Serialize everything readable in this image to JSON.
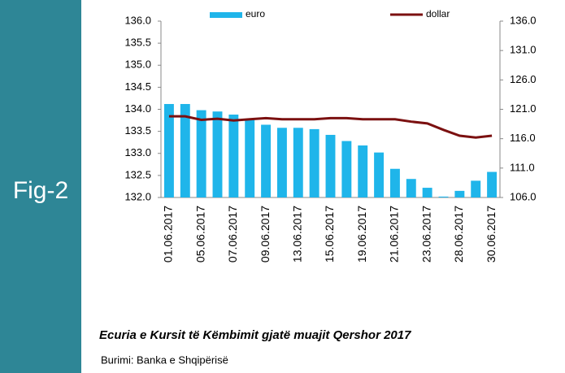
{
  "figure_label": "Fig-2",
  "caption": "Ecuria e Kursit të Këmbimit gjatë muajit Qershor 2017",
  "source": "Burimi: Banka e Shqipërisë",
  "chart_data": {
    "type": "bar-line",
    "categories": [
      "01.06.2017",
      null,
      "05.06.2017",
      null,
      "07.06.2017",
      null,
      "09.06.2017",
      null,
      "13.06.2017",
      null,
      "15.06.2017",
      null,
      "19.06.2017",
      null,
      "21.06.2017",
      null,
      "23.06.2017",
      null,
      "28.06.2017",
      null,
      "30.06.2017"
    ],
    "series": [
      {
        "name": "euro",
        "color": "#1fb5ea",
        "values": [
          134.12,
          134.12,
          133.98,
          133.95,
          133.88,
          133.78,
          133.65,
          133.58,
          133.58,
          133.55,
          133.42,
          133.28,
          133.18,
          133.02,
          132.65,
          132.42,
          132.22,
          132.02,
          132.15,
          132.38,
          132.58
        ]
      },
      {
        "name": "dollar",
        "color": "#7b1010",
        "axis": "y2",
        "values": [
          119.8,
          119.8,
          119.2,
          119.4,
          119.1,
          119.3,
          119.5,
          119.3,
          119.3,
          119.3,
          119.5,
          119.5,
          119.3,
          119.3,
          119.3,
          118.9,
          118.6,
          117.5,
          116.5,
          116.2,
          116.5
        ]
      }
    ],
    "ylim": [
      132.0,
      136.0
    ],
    "yticks": [
      {
        "value": 132,
        "label": "132.0"
      },
      {
        "value": 132.5,
        "label": "132.5"
      },
      {
        "value": 133,
        "label": "133.0"
      },
      {
        "value": 133.5,
        "label": "133.5"
      },
      {
        "value": 134,
        "label": "134.0"
      },
      {
        "value": 134.5,
        "label": "134.5"
      },
      {
        "value": 135,
        "label": "135.0"
      },
      {
        "value": 135.5,
        "label": "135.5"
      },
      {
        "value": 136,
        "label": "136.0"
      }
    ],
    "y2lim": [
      106.0,
      136.0
    ],
    "y2ticks": [
      {
        "value": 106,
        "label": "106.0"
      },
      {
        "value": 111,
        "label": "111.0"
      },
      {
        "value": 116,
        "label": "116.0"
      },
      {
        "value": 121,
        "label": "121.0"
      },
      {
        "value": 126,
        "label": "126.0"
      },
      {
        "value": 131,
        "label": "131.0"
      },
      {
        "value": 136,
        "label": "136.0"
      }
    ]
  }
}
